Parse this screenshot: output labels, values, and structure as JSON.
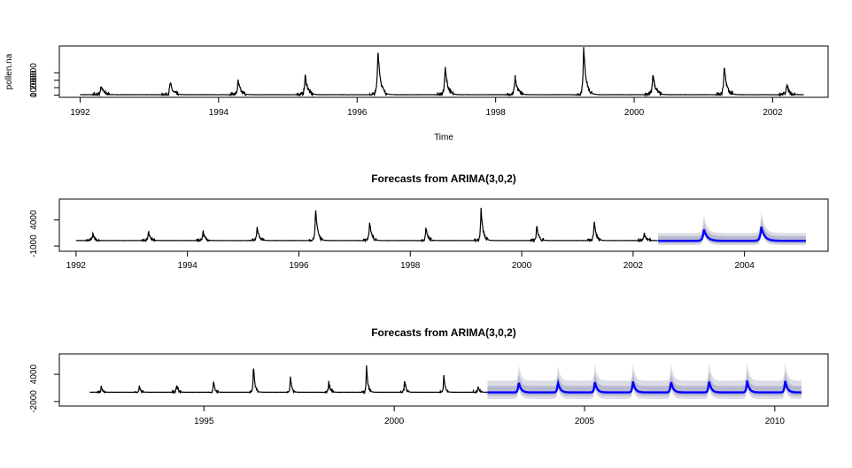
{
  "chart_data": [
    {
      "type": "line",
      "title": "",
      "xlabel": "Time",
      "ylabel": "pollen.na",
      "xlim": [
        1991.7,
        2002.8
      ],
      "ylim": [
        -300,
        6600
      ],
      "x_ticks": [
        1992,
        1994,
        1996,
        1998,
        2000,
        2002
      ],
      "x_tick_labels": [
        "1992",
        "1994",
        "1996",
        "1998",
        "2000",
        "2002"
      ],
      "y_ticks": [
        0,
        1000,
        2000,
        3000
      ],
      "y_tick_labels": [
        "0",
        "1000",
        "2000",
        "3000"
      ],
      "series": [
        {
          "color": "#000000",
          "baseline": 50,
          "peaks": [
            {
              "x": 1992.3,
              "y": 1300
            },
            {
              "x": 1993.3,
              "y": 1700
            },
            {
              "x": 1994.28,
              "y": 1900
            },
            {
              "x": 1995.25,
              "y": 2700
            },
            {
              "x": 1996.3,
              "y": 6300
            },
            {
              "x": 1997.27,
              "y": 3800
            },
            {
              "x": 1998.28,
              "y": 2500
            },
            {
              "x": 1999.27,
              "y": 6400
            },
            {
              "x": 2000.27,
              "y": 2900
            },
            {
              "x": 2001.3,
              "y": 3800
            },
            {
              "x": 2002.2,
              "y": 1500
            }
          ],
          "x_end": 2002.45
        }
      ]
    },
    {
      "type": "line",
      "title": "Forecasts from ARIMA(3,0,2)",
      "xlabel": "",
      "ylabel": "",
      "xlim": [
        1991.7,
        2005.5
      ],
      "ylim": [
        -2000,
        8000
      ],
      "x_ticks": [
        1992,
        1994,
        1996,
        1998,
        2000,
        2002,
        2004
      ],
      "x_tick_labels": [
        "1992",
        "1994",
        "1996",
        "1998",
        "2000",
        "2002",
        "2004"
      ],
      "y_ticks": [
        -1000,
        4000
      ],
      "y_tick_labels": [
        "-1000",
        "4000"
      ],
      "forecast_start": 2002.45,
      "forecast_end": 2005.1,
      "forecast_baseline": 0,
      "forecast_peaks": [
        {
          "x": 2003.27,
          "y": 2200
        },
        {
          "x": 2004.3,
          "y": 2700
        }
      ],
      "interval_80": 900,
      "interval_95": 1500,
      "colors": {
        "history": "#000000",
        "forecast": "#0000ff",
        "band80": "#b8b8d0",
        "band95": "#dcdce6"
      }
    },
    {
      "type": "line",
      "title": "Forecasts from ARIMA(3,0,2)",
      "xlabel": "",
      "ylabel": "",
      "xlim": [
        1991.2,
        2011.4
      ],
      "ylim": [
        -3000,
        8500
      ],
      "x_ticks": [
        1995,
        2000,
        2005,
        2010
      ],
      "x_tick_labels": [
        "1995",
        "2000",
        "2005",
        "2010"
      ],
      "y_ticks": [
        -2000,
        4000
      ],
      "y_tick_labels": [
        "-2000",
        "4000"
      ],
      "forecast_start": 2002.45,
      "forecast_end": 2010.7,
      "forecast_baseline": 0,
      "forecast_peaks": [
        {
          "x": 2003.27,
          "y": 2300
        },
        {
          "x": 2004.3,
          "y": 2300
        },
        {
          "x": 2005.27,
          "y": 2400
        },
        {
          "x": 2006.27,
          "y": 2500
        },
        {
          "x": 2007.27,
          "y": 2500
        },
        {
          "x": 2008.27,
          "y": 2600
        },
        {
          "x": 2009.27,
          "y": 2600
        },
        {
          "x": 2010.27,
          "y": 2700
        }
      ],
      "interval_80": 1400,
      "interval_95": 2600,
      "colors": {
        "history": "#000000",
        "forecast": "#0000ff",
        "band80": "#b8b8d0",
        "band95": "#dcdce6"
      }
    }
  ]
}
